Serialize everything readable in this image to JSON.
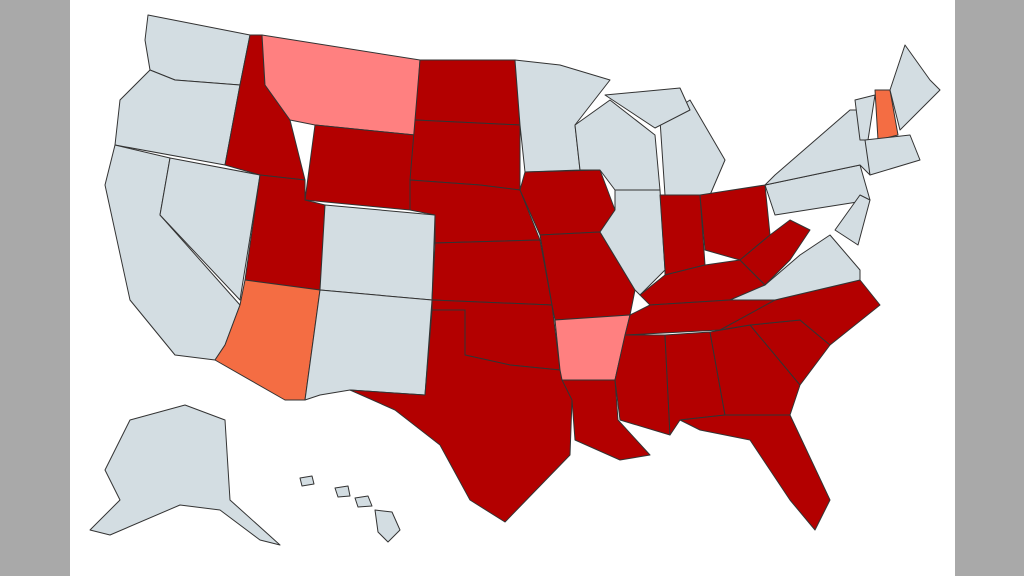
{
  "map": {
    "fills": [
      "#b30000",
      "#ff8080",
      "#f46d43",
      "#d3dde2"
    ],
    "background": "#ffffff",
    "sidebar": "#a9a9a9"
  }
}
